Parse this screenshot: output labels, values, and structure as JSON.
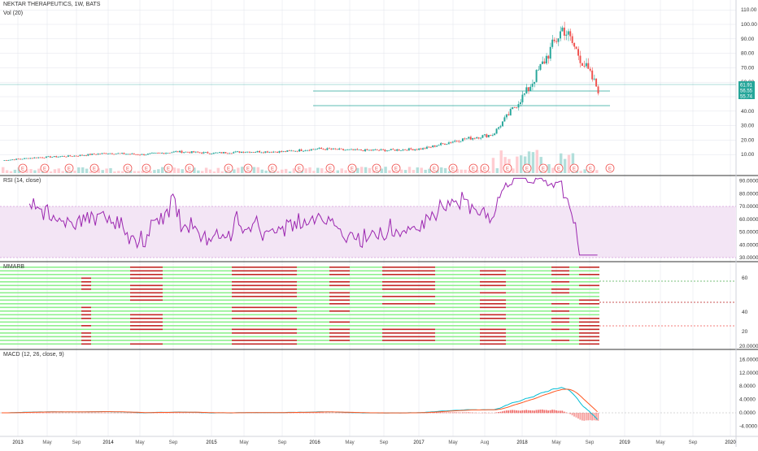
{
  "header": {
    "title": "NEKTAR THERAPEUTICS, 1W, BATS",
    "volume_label": "Vol (20)"
  },
  "panels": {
    "rsi_label": "RSI (14, close)",
    "mmar_label": "MMARB",
    "macd_label": "MACD (12, 26, close, 9)"
  },
  "price_axis": {
    "ticks": [
      "110.00",
      "100.00",
      "90.00",
      "80.00",
      "70.00",
      "60.00",
      "50.00",
      "40.00",
      "30.00",
      "20.00",
      "10.00"
    ],
    "badges": [
      {
        "text": "61.91",
        "color": "#26a69a"
      },
      {
        "text": "56.55",
        "color": "#26a69a"
      },
      {
        "text": "55.74",
        "color": "#26a69a"
      }
    ]
  },
  "rsi_axis": {
    "ticks": [
      "90.0000",
      "80.0000",
      "70.0000",
      "60.0000",
      "50.0000",
      "40.0000",
      "30.0000"
    ]
  },
  "mmar_axis": {
    "ticks": [
      "60",
      "40",
      "20"
    ]
  },
  "macd_axis": {
    "ticks": [
      "20.0000",
      "16.0000",
      "12.0000",
      "8.0000",
      "4.0000",
      "0.0000",
      "-4.0000"
    ]
  },
  "time_axis": [
    "2013",
    "May",
    "Sep",
    "2014",
    "May",
    "Sep",
    "2015",
    "May",
    "Sep",
    "2016",
    "May",
    "Sep",
    "2017",
    "May",
    "Aug",
    "2018",
    "May",
    "Sep",
    "2019",
    "May",
    "Sep",
    "2020"
  ],
  "earnings_marker": "E",
  "colors": {
    "up": "#26a69a",
    "down": "#ef5350",
    "rsi_line": "#9c27b0",
    "rsi_band": "#e1bee7",
    "macd_line": "#00bcd4",
    "signal_line": "#ff5722",
    "grid": "#e0e3eb",
    "mmar_green": "#8ef08e",
    "mmar_red": "#c62828"
  },
  "chart_data": {
    "type": "line",
    "title": "NEKTAR THERAPEUTICS, 1W, BATS",
    "x": [
      "2013",
      "May",
      "Sep",
      "2014",
      "May",
      "Sep",
      "2015",
      "May",
      "Sep",
      "2016",
      "May",
      "Sep",
      "2017",
      "May",
      "Aug",
      "2018",
      "May",
      "Sep"
    ],
    "series": [
      {
        "name": "",
        "values": [
          6,
          8,
          9,
          11,
          10,
          12,
          11,
          12,
          12,
          14,
          13,
          13,
          14,
          20,
          24,
          55,
          98,
          55
        ]
      }
    ],
    "ylim": [
      0,
      115
    ],
    "grid": true
  }
}
